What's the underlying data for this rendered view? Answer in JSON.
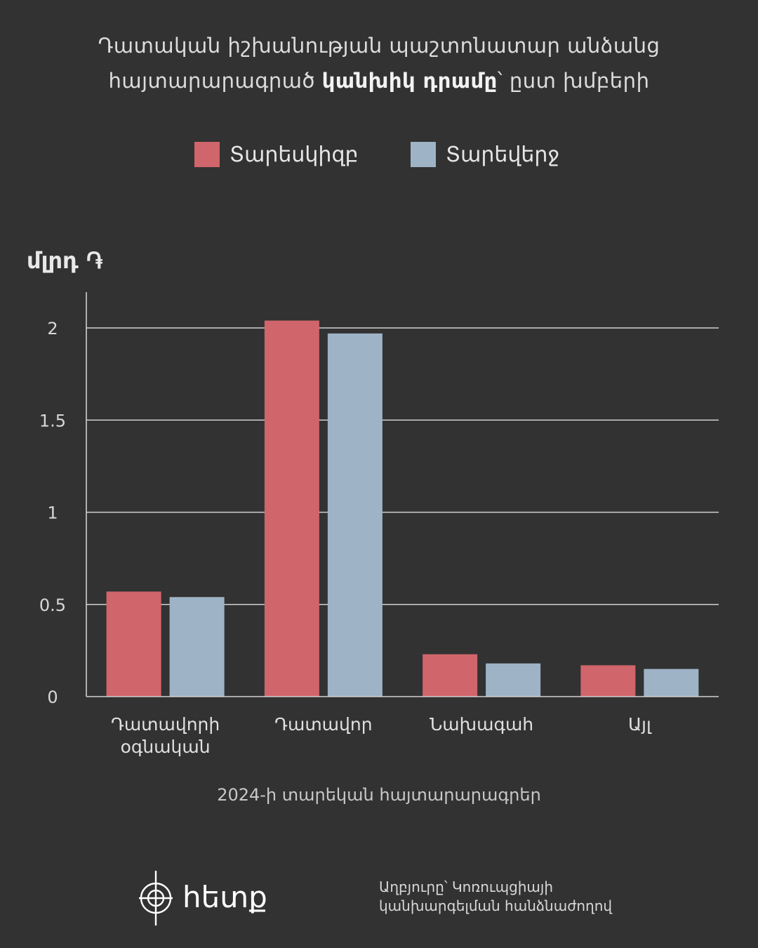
{
  "title": {
    "line1": "Դատական իշխանության պաշտոնատար անձանց",
    "line2_pre": "հայտարարագրած ",
    "line2_bold": "կանխիկ դրամը",
    "line2_post": "՝ ըստ խմբերի"
  },
  "colors": {
    "series1": "#d0656b",
    "series2": "#9eb3c6",
    "background": "#323232",
    "grid": "#cfcfcf"
  },
  "footer": {
    "note": "2024-ի տարեկան հայտարարագրեր",
    "source_line1": "Աղբյուրը՝ Կոռուպցիայի",
    "source_line2": "կանխարգելման հանձնաժողով",
    "logo_text": "hետք"
  },
  "chart_data": {
    "type": "bar",
    "ylabel": "մլրդ ֏",
    "xlabel": "2024-ի տարեկան հայտարարագրեր",
    "ylim": [
      0,
      2.2
    ],
    "yticks": [
      "0",
      "0.5",
      "1",
      "1.5",
      "2"
    ],
    "ytick_values": [
      0,
      0.5,
      1,
      1.5,
      2
    ],
    "grid": true,
    "legend_position": "top",
    "categories": [
      "Դատավորի օգնական",
      "Դատավոր",
      "Նախագահ",
      "Այլ"
    ],
    "category_lines": [
      [
        "Դատավորի",
        "օգնական"
      ],
      [
        "Դատավոր"
      ],
      [
        "Նախագահ"
      ],
      [
        "Այլ"
      ]
    ],
    "series": [
      {
        "name": "Տարեսկիզբ",
        "values": [
          0.57,
          2.04,
          0.23,
          0.17
        ]
      },
      {
        "name": "Տարեվերջ",
        "values": [
          0.54,
          1.97,
          0.18,
          0.15
        ]
      }
    ]
  }
}
